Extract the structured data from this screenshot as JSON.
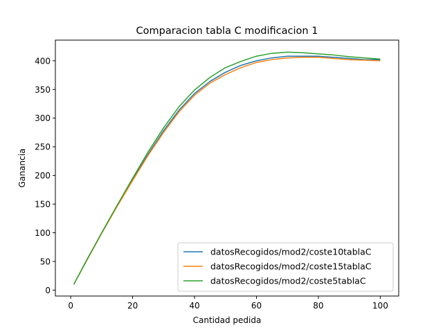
{
  "chart_data": {
    "type": "line",
    "title": "Comparacion tabla C modificacion 1",
    "xlabel": "Cantidad pedida",
    "ylabel": "Ganancia",
    "xlim": [
      -4.95,
      105.95
    ],
    "ylim": [
      -10.3,
      436
    ],
    "xticks": [
      0,
      20,
      40,
      60,
      80,
      100
    ],
    "yticks": [
      0,
      50,
      100,
      150,
      200,
      250,
      300,
      350,
      400
    ],
    "grid": false,
    "legend_position": "lower right",
    "series": [
      {
        "name": "datosRecogidos/mod2/coste10tablaC",
        "color": "#1f77b4",
        "x": [
          1,
          5,
          10,
          15,
          20,
          25,
          30,
          35,
          40,
          45,
          50,
          55,
          60,
          65,
          70,
          75,
          80,
          85,
          90,
          95,
          100
        ],
        "y": [
          10,
          50,
          99,
          147,
          193,
          237,
          278,
          314,
          343,
          364,
          380,
          392,
          400,
          405,
          408,
          408,
          408,
          406,
          404,
          402,
          402
        ]
      },
      {
        "name": "datosRecogidos/mod2/coste15tablaC",
        "color": "#ff7f0e",
        "x": [
          1,
          5,
          10,
          15,
          20,
          25,
          30,
          35,
          40,
          45,
          50,
          55,
          60,
          65,
          70,
          75,
          80,
          85,
          90,
          95,
          100
        ],
        "y": [
          10,
          50,
          99,
          146,
          191,
          235,
          275,
          311,
          340,
          361,
          376,
          388,
          397,
          402,
          405,
          406,
          406,
          404,
          402,
          401,
          400
        ]
      },
      {
        "name": "datosRecogidos/mod2/coste5tablaC",
        "color": "#2ca02c",
        "x": [
          1,
          5,
          10,
          15,
          20,
          25,
          30,
          35,
          40,
          45,
          50,
          55,
          60,
          65,
          70,
          75,
          80,
          85,
          90,
          95,
          100
        ],
        "y": [
          10,
          51,
          100,
          148,
          195,
          241,
          283,
          320,
          349,
          371,
          388,
          399,
          408,
          413,
          415,
          414,
          412,
          410,
          407,
          405,
          403
        ]
      }
    ]
  }
}
